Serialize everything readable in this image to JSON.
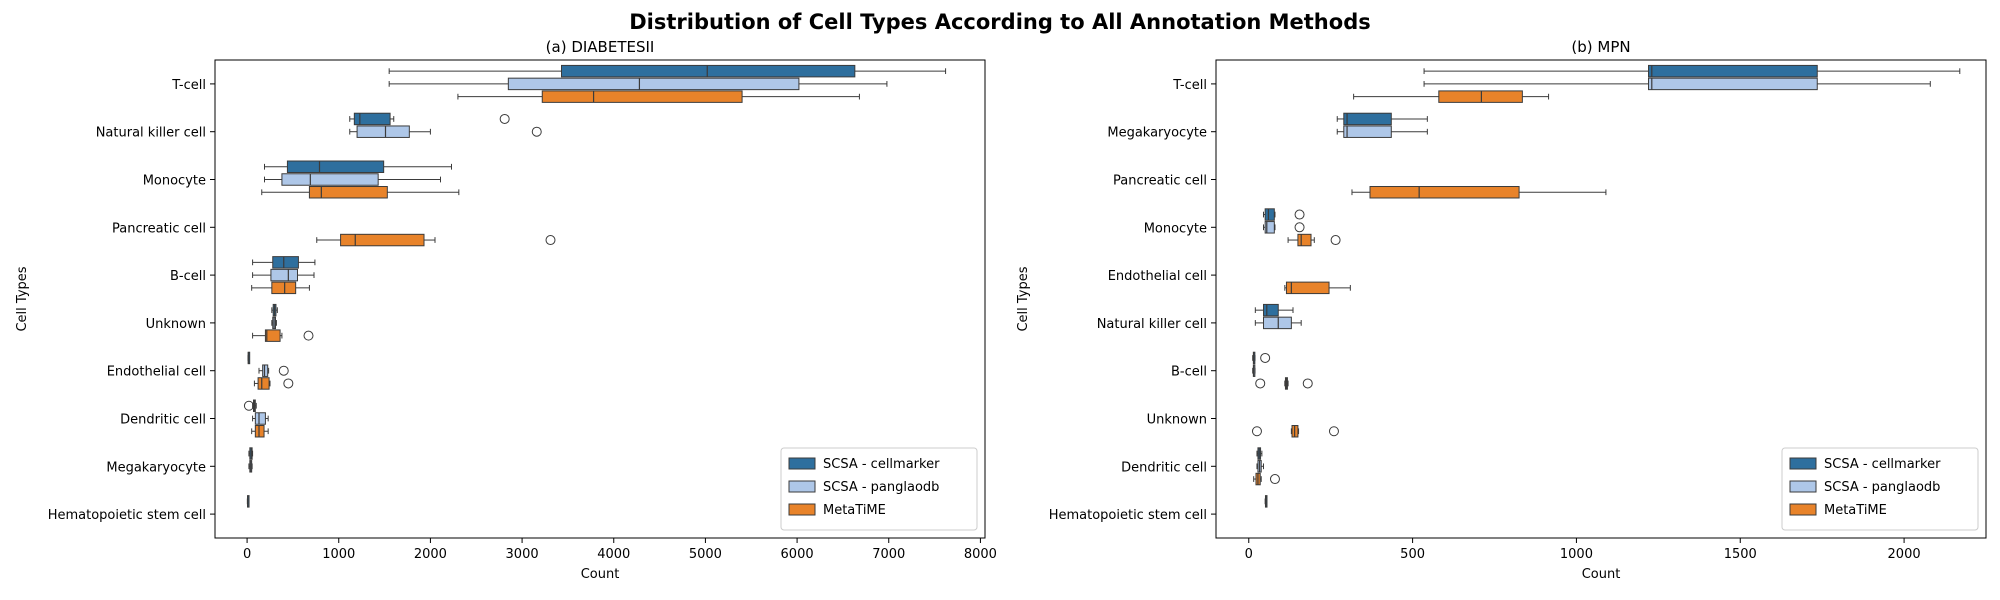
{
  "figure": {
    "suptitle": "Distribution of Cell Types According to All Annotation Methods"
  },
  "colors": {
    "SCSA - cellmarker": "#2e6f9e",
    "SCSA - panglaodb": "#aec7e8",
    "MetaTiME": "#e8832a"
  },
  "chart_data": [
    {
      "type": "boxplot",
      "orientation": "horizontal",
      "title": "(a) DIABETESII",
      "xlabel": "Count",
      "ylabel": "Cell Types",
      "xlim": [
        -350,
        8050
      ],
      "xticks": [
        0,
        1000,
        2000,
        3000,
        4000,
        5000,
        6000,
        7000,
        8000
      ],
      "legend_position": "lower right",
      "series": [
        "SCSA - cellmarker",
        "SCSA - panglaodb",
        "MetaTiME"
      ],
      "categories": [
        "T-cell",
        "Natural killer cell",
        "Monocyte",
        "Pancreatic cell",
        "B-cell",
        "Unknown",
        "Endothelial cell",
        "Dendritic cell",
        "Megakaryocyte",
        "Hematopoietic stem cell"
      ],
      "boxes": [
        {
          "category": "T-cell",
          "series": "SCSA - cellmarker",
          "whislo": 1550,
          "q1": 3430,
          "med": 5020,
          "q3": 6630,
          "whishi": 7620,
          "fliers": []
        },
        {
          "category": "T-cell",
          "series": "SCSA - panglaodb",
          "whislo": 1550,
          "q1": 2850,
          "med": 4280,
          "q3": 6020,
          "whishi": 6980,
          "fliers": []
        },
        {
          "category": "T-cell",
          "series": "MetaTiME",
          "whislo": 2300,
          "q1": 3220,
          "med": 3780,
          "q3": 5400,
          "whishi": 6680,
          "fliers": []
        },
        {
          "category": "Natural killer cell",
          "series": "SCSA - cellmarker",
          "whislo": 1120,
          "q1": 1170,
          "med": 1230,
          "q3": 1560,
          "whishi": 1600,
          "fliers": [
            2810
          ]
        },
        {
          "category": "Natural killer cell",
          "series": "SCSA - panglaodb",
          "whislo": 1120,
          "q1": 1200,
          "med": 1510,
          "q3": 1770,
          "whishi": 2000,
          "fliers": [
            3160
          ]
        },
        {
          "category": "Monocyte",
          "series": "SCSA - cellmarker",
          "whislo": 190,
          "q1": 440,
          "med": 790,
          "q3": 1490,
          "whishi": 2230,
          "fliers": []
        },
        {
          "category": "Monocyte",
          "series": "SCSA - panglaodb",
          "whislo": 190,
          "q1": 380,
          "med": 690,
          "q3": 1430,
          "whishi": 2110,
          "fliers": []
        },
        {
          "category": "Monocyte",
          "series": "MetaTiME",
          "whislo": 160,
          "q1": 680,
          "med": 810,
          "q3": 1530,
          "whishi": 2310,
          "fliers": []
        },
        {
          "category": "Pancreatic cell",
          "series": "MetaTiME",
          "whislo": 760,
          "q1": 1020,
          "med": 1180,
          "q3": 1930,
          "whishi": 2050,
          "fliers": [
            3310
          ]
        },
        {
          "category": "B-cell",
          "series": "SCSA - cellmarker",
          "whislo": 60,
          "q1": 280,
          "med": 400,
          "q3": 560,
          "whishi": 740,
          "fliers": []
        },
        {
          "category": "B-cell",
          "series": "SCSA - panglaodb",
          "whislo": 60,
          "q1": 260,
          "med": 450,
          "q3": 550,
          "whishi": 730,
          "fliers": []
        },
        {
          "category": "B-cell",
          "series": "MetaTiME",
          "whislo": 50,
          "q1": 270,
          "med": 410,
          "q3": 530,
          "whishi": 680,
          "fliers": []
        },
        {
          "category": "Unknown",
          "series": "SCSA - cellmarker",
          "whislo": 270,
          "q1": 285,
          "med": 300,
          "q3": 315,
          "whishi": 330,
          "fliers": []
        },
        {
          "category": "Unknown",
          "series": "SCSA - panglaodb",
          "whislo": 270,
          "q1": 280,
          "med": 295,
          "q3": 310,
          "whishi": 320,
          "fliers": []
        },
        {
          "category": "Unknown",
          "series": "MetaTiME",
          "whislo": 60,
          "q1": 200,
          "med": 215,
          "q3": 360,
          "whishi": 380,
          "fliers": [
            670
          ]
        },
        {
          "category": "Endothelial cell",
          "series": "SCSA - cellmarker",
          "whislo": 10,
          "q1": 12,
          "med": 14,
          "q3": 16,
          "whishi": 18,
          "fliers": []
        },
        {
          "category": "Endothelial cell",
          "series": "SCSA - panglaodb",
          "whislo": 130,
          "q1": 170,
          "med": 190,
          "q3": 225,
          "whishi": 235,
          "fliers": [
            400
          ]
        },
        {
          "category": "Endothelial cell",
          "series": "MetaTiME",
          "whislo": 80,
          "q1": 120,
          "med": 160,
          "q3": 240,
          "whishi": 250,
          "fliers": [
            450
          ]
        },
        {
          "category": "Dendritic cell",
          "series": "SCSA - cellmarker",
          "whislo": 60,
          "q1": 70,
          "med": 80,
          "q3": 90,
          "whishi": 100,
          "fliers": [
            20
          ]
        },
        {
          "category": "Dendritic cell",
          "series": "SCSA - panglaodb",
          "whislo": 60,
          "q1": 90,
          "med": 130,
          "q3": 200,
          "whishi": 230,
          "fliers": []
        },
        {
          "category": "Dendritic cell",
          "series": "MetaTiME",
          "whislo": 50,
          "q1": 90,
          "med": 130,
          "q3": 185,
          "whishi": 230,
          "fliers": []
        },
        {
          "category": "Megakaryocyte",
          "series": "SCSA - cellmarker",
          "whislo": 20,
          "q1": 30,
          "med": 45,
          "q3": 55,
          "whishi": 60,
          "fliers": []
        },
        {
          "category": "Megakaryocyte",
          "series": "SCSA - panglaodb",
          "whislo": 20,
          "q1": 30,
          "med": 40,
          "q3": 50,
          "whishi": 55,
          "fliers": []
        },
        {
          "category": "Hematopoietic stem cell",
          "series": "SCSA - cellmarker",
          "whislo": 3,
          "q1": 5,
          "med": 7,
          "q3": 9,
          "whishi": 11,
          "fliers": []
        }
      ]
    },
    {
      "type": "boxplot",
      "orientation": "horizontal",
      "title": "(b) MPN",
      "xlabel": "Count",
      "ylabel": "Cell Types",
      "xlim": [
        -100,
        2250
      ],
      "xticks": [
        0,
        500,
        1000,
        1500,
        2000
      ],
      "legend_position": "lower right",
      "series": [
        "SCSA - cellmarker",
        "SCSA - panglaodb",
        "MetaTiME"
      ],
      "categories": [
        "T-cell",
        "Megakaryocyte",
        "Pancreatic cell",
        "Monocyte",
        "Endothelial cell",
        "Natural killer cell",
        "B-cell",
        "Unknown",
        "Dendritic cell",
        "Hematopoietic stem cell"
      ],
      "boxes": [
        {
          "category": "T-cell",
          "series": "SCSA - cellmarker",
          "whislo": 535,
          "q1": 1220,
          "med": 1230,
          "q3": 1735,
          "whishi": 2170,
          "fliers": []
        },
        {
          "category": "T-cell",
          "series": "SCSA - panglaodb",
          "whislo": 535,
          "q1": 1220,
          "med": 1230,
          "q3": 1735,
          "whishi": 2080,
          "fliers": []
        },
        {
          "category": "T-cell",
          "series": "MetaTiME",
          "whislo": 320,
          "q1": 580,
          "med": 710,
          "q3": 835,
          "whishi": 915,
          "fliers": []
        },
        {
          "category": "Megakaryocyte",
          "series": "SCSA - cellmarker",
          "whislo": 270,
          "q1": 290,
          "med": 300,
          "q3": 435,
          "whishi": 545,
          "fliers": []
        },
        {
          "category": "Megakaryocyte",
          "series": "SCSA - panglaodb",
          "whislo": 270,
          "q1": 290,
          "med": 300,
          "q3": 435,
          "whishi": 545,
          "fliers": []
        },
        {
          "category": "Pancreatic cell",
          "series": "MetaTiME",
          "whislo": 315,
          "q1": 370,
          "med": 520,
          "q3": 825,
          "whishi": 1090,
          "fliers": []
        },
        {
          "category": "Monocyte",
          "series": "SCSA - cellmarker",
          "whislo": 45,
          "q1": 50,
          "med": 60,
          "q3": 78,
          "whishi": 80,
          "fliers": [
            155
          ]
        },
        {
          "category": "Monocyte",
          "series": "SCSA - panglaodb",
          "whislo": 45,
          "q1": 50,
          "med": 55,
          "q3": 78,
          "whishi": 80,
          "fliers": [
            155
          ]
        },
        {
          "category": "Monocyte",
          "series": "MetaTiME",
          "whislo": 120,
          "q1": 150,
          "med": 160,
          "q3": 190,
          "whishi": 200,
          "fliers": [
            265
          ]
        },
        {
          "category": "Endothelial cell",
          "series": "MetaTiME",
          "whislo": 110,
          "q1": 115,
          "med": 130,
          "q3": 245,
          "whishi": 310,
          "fliers": []
        },
        {
          "category": "Natural killer cell",
          "series": "SCSA - cellmarker",
          "whislo": 20,
          "q1": 45,
          "med": 55,
          "q3": 90,
          "whishi": 135,
          "fliers": []
        },
        {
          "category": "Natural killer cell",
          "series": "SCSA - panglaodb",
          "whislo": 20,
          "q1": 45,
          "med": 90,
          "q3": 130,
          "whishi": 160,
          "fliers": []
        },
        {
          "category": "B-cell",
          "series": "SCSA - cellmarker",
          "whislo": 12,
          "q1": 14,
          "med": 15,
          "q3": 17,
          "whishi": 19,
          "fliers": [
            50
          ]
        },
        {
          "category": "B-cell",
          "series": "SCSA - panglaodb",
          "whislo": 12,
          "q1": 14,
          "med": 15,
          "q3": 17,
          "whishi": 19,
          "fliers": []
        },
        {
          "category": "B-cell",
          "series": "MetaTiME",
          "whislo": 110,
          "q1": 112,
          "med": 115,
          "q3": 118,
          "whishi": 120,
          "fliers": [
            35,
            180
          ]
        },
        {
          "category": "Unknown",
          "series": "MetaTiME",
          "whislo": 130,
          "q1": 132,
          "med": 140,
          "q3": 150,
          "whishi": 152,
          "fliers": [
            25,
            260
          ]
        },
        {
          "category": "Dendritic cell",
          "series": "SCSA - cellmarker",
          "whislo": 25,
          "q1": 28,
          "med": 32,
          "q3": 36,
          "whishi": 40,
          "fliers": []
        },
        {
          "category": "Dendritic cell",
          "series": "SCSA - panglaodb",
          "whislo": 25,
          "q1": 28,
          "med": 33,
          "q3": 38,
          "whishi": 45,
          "fliers": []
        },
        {
          "category": "Dendritic cell",
          "series": "MetaTiME",
          "whislo": 15,
          "q1": 22,
          "med": 28,
          "q3": 35,
          "whishi": 38,
          "fliers": [
            80
          ]
        },
        {
          "category": "Hematopoietic stem cell",
          "series": "SCSA - cellmarker",
          "whislo": 50,
          "q1": 51,
          "med": 52,
          "q3": 53,
          "whishi": 54,
          "fliers": []
        }
      ]
    }
  ]
}
